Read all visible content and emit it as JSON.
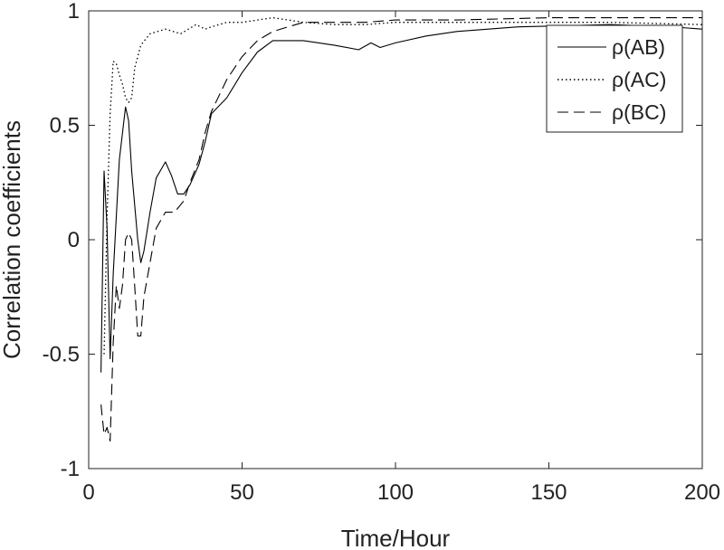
{
  "chart_data": {
    "type": "line",
    "title": "",
    "xlabel": "Time/Hour",
    "ylabel": "Correlation coefficients",
    "xlim": [
      0,
      200
    ],
    "ylim": [
      -1,
      1
    ],
    "xticks": [
      0,
      50,
      100,
      150,
      200
    ],
    "xtick_labels": [
      "0",
      "50",
      "100",
      "150",
      "200"
    ],
    "yticks": [
      -1,
      -0.5,
      0,
      0.5,
      1
    ],
    "ytick_labels": [
      "-1",
      "-0.5",
      "0",
      "0.5",
      "1"
    ],
    "grid": false,
    "legend_position": "top-right",
    "series": [
      {
        "name": "ρ(AB)",
        "style": "solid",
        "color": "#000000",
        "x": [
          4,
          5,
          6,
          7,
          8,
          10,
          12,
          13,
          14,
          16,
          17,
          18,
          20,
          22,
          25,
          27,
          29,
          31,
          33,
          36,
          38,
          40,
          45,
          50,
          55,
          60,
          70,
          80,
          88,
          92,
          95,
          100,
          110,
          120,
          140,
          170,
          190,
          200
        ],
        "y": [
          -0.58,
          0.3,
          0.05,
          -0.52,
          -0.15,
          0.35,
          0.58,
          0.52,
          0.3,
          0.0,
          -0.1,
          -0.05,
          0.12,
          0.27,
          0.34,
          0.28,
          0.2,
          0.2,
          0.24,
          0.33,
          0.43,
          0.55,
          0.62,
          0.73,
          0.82,
          0.87,
          0.87,
          0.85,
          0.83,
          0.86,
          0.84,
          0.86,
          0.89,
          0.91,
          0.93,
          0.94,
          0.93,
          0.92
        ]
      },
      {
        "name": "ρ(AC)",
        "style": "dotted",
        "color": "#000000",
        "x": [
          5,
          6,
          7,
          8,
          9,
          10,
          11,
          12,
          13,
          14,
          15,
          17,
          20,
          25,
          30,
          35,
          38,
          40,
          45,
          50,
          55,
          60,
          65,
          70,
          80,
          90,
          100,
          120,
          150,
          170,
          200
        ],
        "y": [
          -0.5,
          0.1,
          0.55,
          0.78,
          0.77,
          0.72,
          0.68,
          0.62,
          0.6,
          0.62,
          0.75,
          0.85,
          0.9,
          0.92,
          0.9,
          0.94,
          0.92,
          0.93,
          0.95,
          0.95,
          0.96,
          0.97,
          0.96,
          0.95,
          0.94,
          0.94,
          0.95,
          0.95,
          0.95,
          0.95,
          0.94
        ]
      },
      {
        "name": "ρ(BC)",
        "style": "dashed",
        "color": "#000000",
        "x": [
          4,
          5,
          6,
          7,
          8,
          9,
          10,
          11,
          12,
          13,
          14,
          15,
          16,
          17,
          18,
          20,
          22,
          25,
          28,
          31,
          33,
          36,
          38,
          40,
          45,
          50,
          55,
          60,
          65,
          70,
          80,
          90,
          100,
          120,
          150,
          200
        ],
        "y": [
          -0.72,
          -0.85,
          -0.82,
          -0.88,
          -0.45,
          -0.2,
          -0.3,
          -0.2,
          0.0,
          0.03,
          0.0,
          -0.2,
          -0.42,
          -0.42,
          -0.25,
          -0.1,
          0.05,
          0.12,
          0.12,
          0.17,
          0.25,
          0.35,
          0.47,
          0.56,
          0.7,
          0.8,
          0.87,
          0.91,
          0.93,
          0.95,
          0.95,
          0.95,
          0.96,
          0.96,
          0.97,
          0.97
        ]
      }
    ]
  }
}
